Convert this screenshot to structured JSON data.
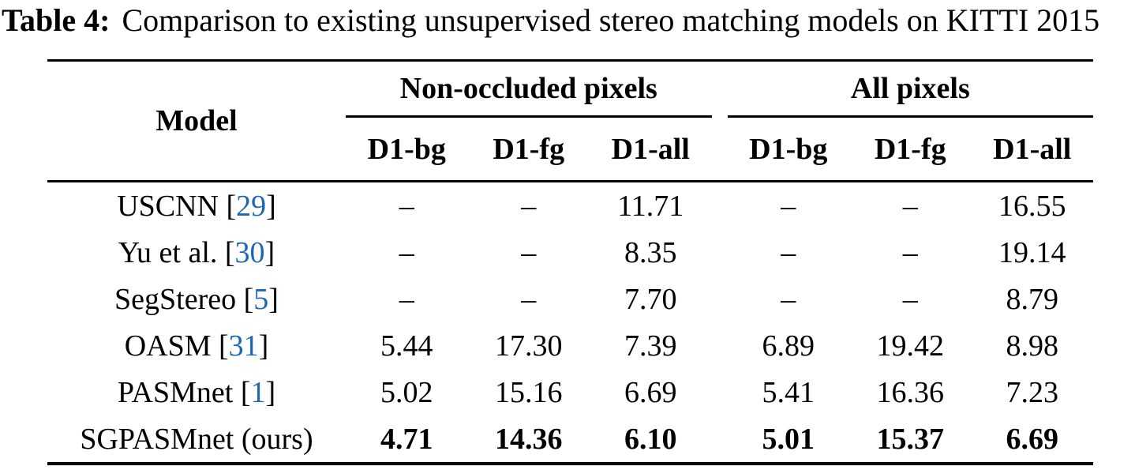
{
  "caption": {
    "label": "Table 4:",
    "text": "Comparison to existing unsupervised stereo matching models on KITTI 2015"
  },
  "table": {
    "model_header": "Model",
    "groups": [
      {
        "label": "Non-occluded pixels",
        "columns": [
          "D1-bg",
          "D1-fg",
          "D1-all"
        ]
      },
      {
        "label": "All pixels",
        "columns": [
          "D1-bg",
          "D1-fg",
          "D1-all"
        ]
      }
    ],
    "citation_brackets": {
      "open": " [",
      "close": "]"
    },
    "rows": [
      {
        "model": "USCNN",
        "citation": "29",
        "bold": false,
        "values": [
          "–",
          "–",
          "11.71",
          "–",
          "–",
          "16.55"
        ]
      },
      {
        "model": "Yu et al.",
        "citation": "30",
        "bold": false,
        "values": [
          "–",
          "–",
          "8.35",
          "–",
          "–",
          "19.14"
        ]
      },
      {
        "model": "SegStereo",
        "citation": "5",
        "bold": false,
        "values": [
          "–",
          "–",
          "7.70",
          "–",
          "–",
          "8.79"
        ]
      },
      {
        "model": "OASM",
        "citation": "31",
        "bold": false,
        "values": [
          "5.44",
          "17.30",
          "7.39",
          "6.89",
          "19.42",
          "8.98"
        ]
      },
      {
        "model": "PASMnet",
        "citation": "1",
        "bold": false,
        "values": [
          "5.02",
          "15.16",
          "6.69",
          "5.41",
          "16.36",
          "7.23"
        ]
      },
      {
        "model": "SGPASMnet (ours)",
        "citation": null,
        "bold": true,
        "values": [
          "4.71",
          "14.36",
          "6.10",
          "5.01",
          "15.37",
          "6.69"
        ]
      }
    ],
    "colors": {
      "text": "#000000",
      "citation_blue": "#1c67b5",
      "background": "#ffffff"
    }
  }
}
